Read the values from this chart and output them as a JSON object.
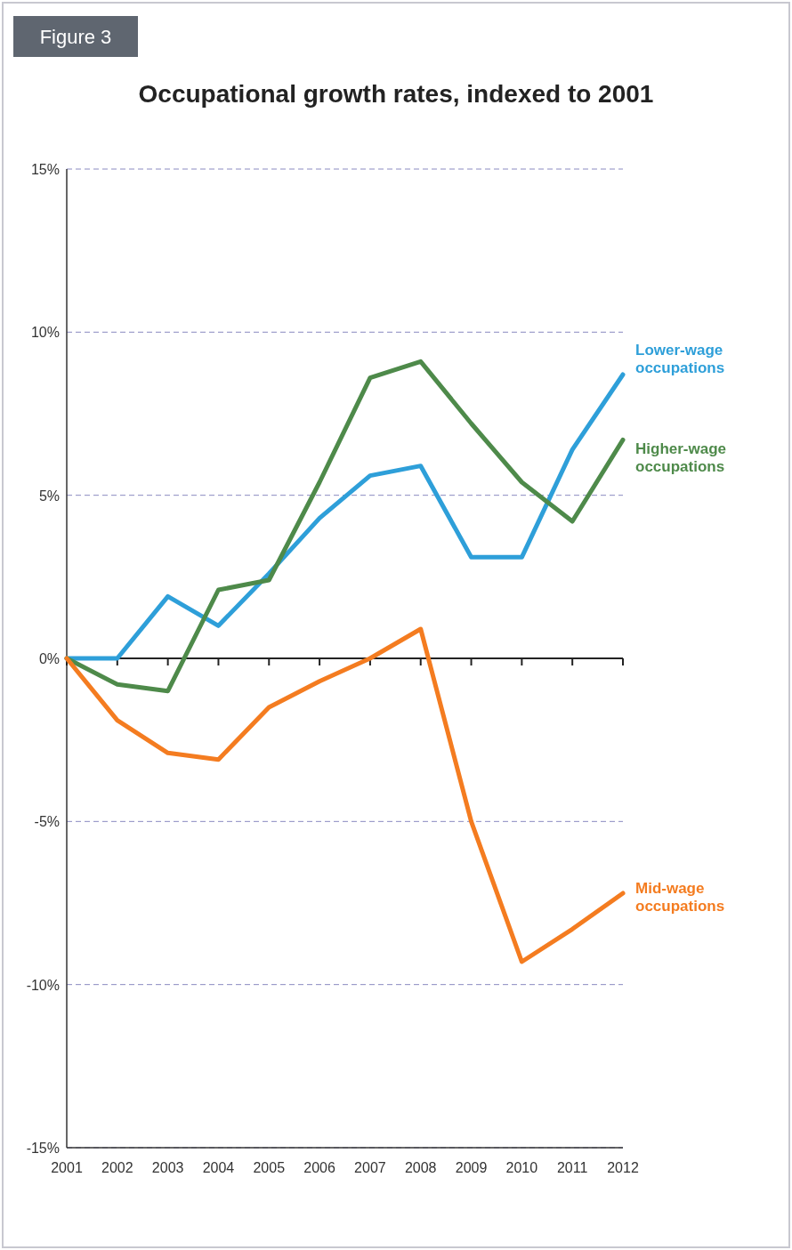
{
  "chart_data": {
    "type": "line",
    "title": "Occupational growth rates, indexed to 2001",
    "annotations": [
      "Figure 3"
    ],
    "categories": [
      "2001",
      "2002",
      "2003",
      "2004",
      "2005",
      "2006",
      "2007",
      "2008",
      "2009",
      "2010",
      "2011",
      "2012"
    ],
    "series": [
      {
        "name": "Lower-wage occupations",
        "color": "#2e9fd9",
        "values": [
          0,
          0,
          1.9,
          1.0,
          2.6,
          4.3,
          5.6,
          5.9,
          3.1,
          3.1,
          6.4,
          8.7
        ]
      },
      {
        "name": "Higher-wage occupations",
        "color": "#4e8a4a",
        "values": [
          0,
          -0.8,
          -1.0,
          2.1,
          2.4,
          5.4,
          8.6,
          9.1,
          7.2,
          5.4,
          4.2,
          6.7
        ]
      },
      {
        "name": "Mid-wage occupations",
        "color": "#f47c20",
        "values": [
          0,
          -1.9,
          -2.9,
          -3.1,
          -1.5,
          -0.7,
          0,
          0.9,
          -5.0,
          -9.3,
          -8.3,
          -7.2
        ]
      }
    ],
    "ylim": [
      -15,
      15
    ],
    "yticks": [
      {
        "value": -15,
        "label": "-15%"
      },
      {
        "value": -10,
        "label": "-10%"
      },
      {
        "value": -5,
        "label": "-5%"
      },
      {
        "value": 0,
        "label": "0%"
      },
      {
        "value": 5,
        "label": "5%"
      },
      {
        "value": 10,
        "label": "10%"
      },
      {
        "value": 15,
        "label": "15%"
      }
    ],
    "grid": "y",
    "legend": false,
    "line_style": "solid"
  }
}
